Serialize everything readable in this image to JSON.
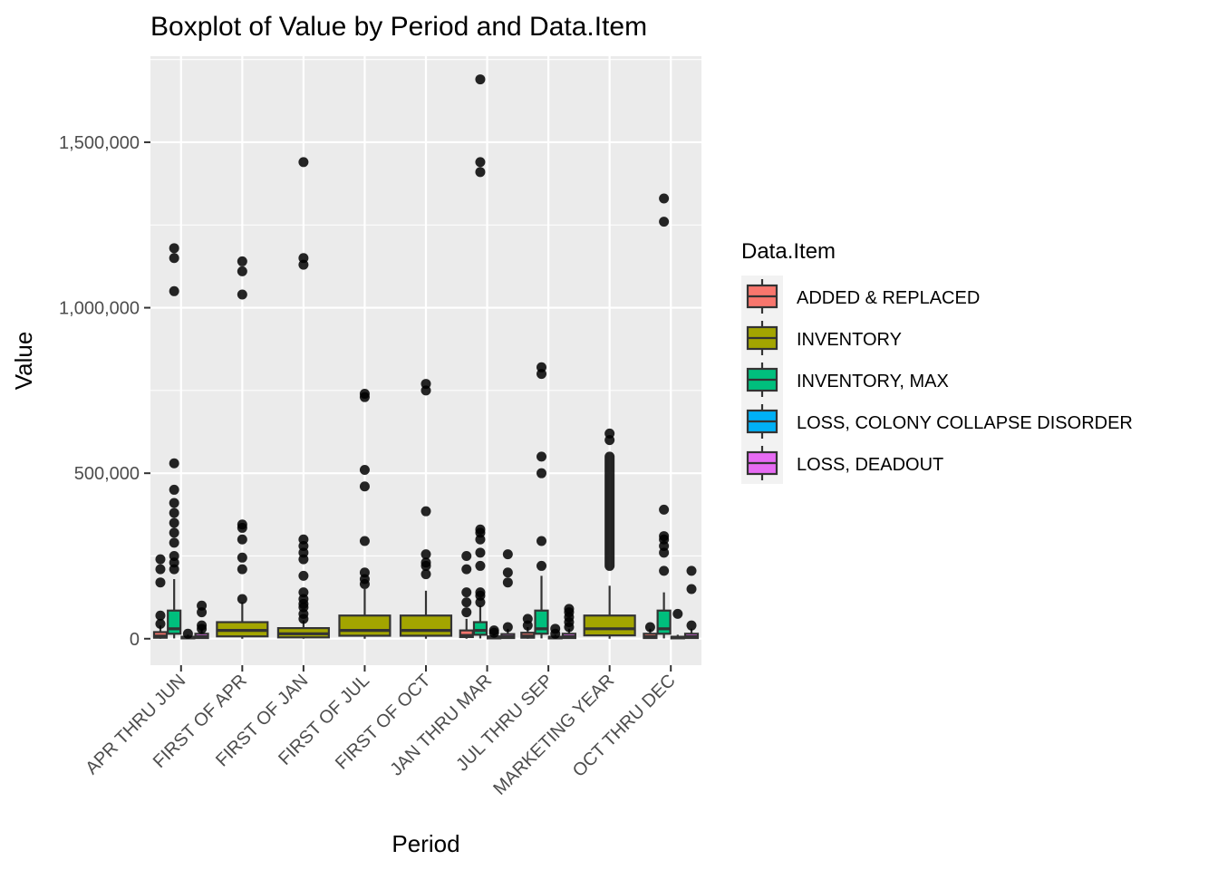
{
  "chart_data": {
    "type": "boxplot",
    "title": "Boxplot of Value by Period and Data.Item",
    "xlabel": "Period",
    "ylabel": "Value",
    "ylim": [
      -80000,
      1760000
    ],
    "yticks": [
      0,
      500000,
      1000000,
      1500000
    ],
    "ytick_labels": [
      "0",
      "500,000",
      "1,000,000",
      "1,500,000"
    ],
    "grid": true,
    "legend": {
      "title": "Data.Item",
      "position": "right",
      "items": [
        {
          "label": "ADDED & REPLACED",
          "color": "#F8766D"
        },
        {
          "label": "INVENTORY",
          "color": "#A3A500"
        },
        {
          "label": "INVENTORY, MAX",
          "color": "#00BF7D"
        },
        {
          "label": "LOSS, COLONY COLLAPSE DISORDER",
          "color": "#00B0F6"
        },
        {
          "label": "LOSS, DEADOUT",
          "color": "#E76BF3"
        }
      ]
    },
    "categories": [
      "APR THRU JUN",
      "FIRST OF APR",
      "FIRST OF JAN",
      "FIRST OF JUL",
      "FIRST OF OCT",
      "JAN THRU MAR",
      "JUL THRU SEP",
      "MARKETING YEAR",
      "OCT THRU DEC"
    ],
    "boxes": [
      {
        "category": "APR THRU JUN",
        "item": "ADDED & REPLACED",
        "slot": 0,
        "width": 3,
        "min": 0,
        "q1": 3000,
        "median": 8000,
        "q3": 20000,
        "max": 40000,
        "outliers": [
          45000,
          70000,
          170000,
          210000,
          240000
        ]
      },
      {
        "category": "APR THRU JUN",
        "item": "INVENTORY, MAX",
        "slot": 1,
        "width": 3,
        "min": 1000,
        "q1": 15000,
        "median": 30000,
        "q3": 85000,
        "max": 180000,
        "outliers": [
          210000,
          230000,
          250000,
          290000,
          320000,
          350000,
          380000,
          410000,
          450000,
          530000,
          1050000,
          1150000,
          1180000
        ]
      },
      {
        "category": "APR THRU JUN",
        "item": "LOSS, COLONY COLLAPSE DISORDER",
        "slot": 2,
        "width": 3,
        "min": 0,
        "q1": 1000,
        "median": 3000,
        "q3": 6000,
        "max": 12000,
        "outliers": [
          15000
        ]
      },
      {
        "category": "APR THRU JUN",
        "item": "LOSS, DEADOUT",
        "slot": 3,
        "width": 3,
        "min": 0,
        "q1": 2000,
        "median": 6000,
        "q3": 15000,
        "max": 30000,
        "outliers": [
          30000,
          40000,
          80000,
          100000
        ]
      },
      {
        "category": "FIRST OF APR",
        "item": "INVENTORY",
        "slot": 0,
        "width": 1,
        "min": 0,
        "q1": 7000,
        "median": 25000,
        "q3": 50000,
        "max": 110000,
        "outliers": [
          120000,
          210000,
          245000,
          300000,
          335000,
          345000,
          1040000,
          1110000,
          1140000
        ]
      },
      {
        "category": "FIRST OF JAN",
        "item": "INVENTORY",
        "slot": 0,
        "width": 1,
        "min": 0,
        "q1": 4000,
        "median": 15000,
        "q3": 32000,
        "max": 55000,
        "outliers": [
          60000,
          75000,
          95000,
          105000,
          120000,
          140000,
          190000,
          240000,
          260000,
          280000,
          300000,
          1130000,
          1150000,
          1440000
        ]
      },
      {
        "category": "FIRST OF JUL",
        "item": "INVENTORY",
        "slot": 0,
        "width": 1,
        "min": 0,
        "q1": 9000,
        "median": 25000,
        "q3": 70000,
        "max": 150000,
        "outliers": [
          165000,
          180000,
          200000,
          295000,
          460000,
          510000,
          730000,
          740000
        ]
      },
      {
        "category": "FIRST OF OCT",
        "item": "INVENTORY",
        "slot": 0,
        "width": 1,
        "min": 0,
        "q1": 9000,
        "median": 25000,
        "q3": 70000,
        "max": 145000,
        "outliers": [
          195000,
          220000,
          230000,
          255000,
          385000,
          750000,
          770000
        ]
      },
      {
        "category": "JAN THRU MAR",
        "item": "ADDED & REPLACED",
        "slot": 0,
        "width": 3,
        "min": 0,
        "q1": 5000,
        "median": 10000,
        "q3": 25000,
        "max": 60000,
        "outliers": [
          80000,
          110000,
          140000,
          210000,
          250000
        ]
      },
      {
        "category": "JAN THRU MAR",
        "item": "INVENTORY, MAX",
        "slot": 1,
        "width": 3,
        "min": 1000,
        "q1": 12000,
        "median": 25000,
        "q3": 50000,
        "max": 100000,
        "outliers": [
          110000,
          130000,
          140000,
          220000,
          260000,
          300000,
          320000,
          330000,
          1410000,
          1440000,
          1690000
        ]
      },
      {
        "category": "JAN THRU MAR",
        "item": "LOSS, COLONY COLLAPSE DISORDER",
        "slot": 2,
        "width": 3,
        "min": 0,
        "q1": 1000,
        "median": 3000,
        "q3": 7000,
        "max": 14000,
        "outliers": [
          18000,
          25000
        ]
      },
      {
        "category": "JAN THRU MAR",
        "item": "LOSS, DEADOUT",
        "slot": 3,
        "width": 3,
        "min": 0,
        "q1": 2000,
        "median": 6000,
        "q3": 14000,
        "max": 30000,
        "outliers": [
          35000,
          170000,
          200000,
          255000
        ]
      },
      {
        "category": "JUL THRU SEP",
        "item": "ADDED & REPLACED",
        "slot": 0,
        "width": 3,
        "min": 0,
        "q1": 3000,
        "median": 8000,
        "q3": 18000,
        "max": 35000,
        "outliers": [
          40000,
          60000
        ]
      },
      {
        "category": "JUL THRU SEP",
        "item": "INVENTORY, MAX",
        "slot": 1,
        "width": 3,
        "min": 1000,
        "q1": 15000,
        "median": 30000,
        "q3": 85000,
        "max": 190000,
        "outliers": [
          220000,
          295000,
          500000,
          550000,
          800000,
          820000
        ]
      },
      {
        "category": "JUL THRU SEP",
        "item": "LOSS, COLONY COLLAPSE DISORDER",
        "slot": 2,
        "width": 3,
        "min": 0,
        "q1": 1000,
        "median": 3000,
        "q3": 6000,
        "max": 12000,
        "outliers": [
          15000,
          30000
        ]
      },
      {
        "category": "JUL THRU SEP",
        "item": "LOSS, DEADOUT",
        "slot": 3,
        "width": 3,
        "min": 0,
        "q1": 2000,
        "median": 6000,
        "q3": 15000,
        "max": 30000,
        "outliers": [
          35000,
          50000,
          65000,
          80000,
          90000
        ]
      },
      {
        "category": "MARKETING YEAR",
        "item": "INVENTORY",
        "slot": 0,
        "width": 1,
        "min": 0,
        "q1": 10000,
        "median": 30000,
        "q3": 70000,
        "max": 160000,
        "outliers": [
          600000,
          620000
        ]
      },
      {
        "category": "OCT THRU DEC",
        "item": "ADDED & REPLACED",
        "slot": 0,
        "width": 3,
        "min": 0,
        "q1": 2000,
        "median": 6000,
        "q3": 15000,
        "max": 30000,
        "outliers": [
          35000
        ]
      },
      {
        "category": "OCT THRU DEC",
        "item": "INVENTORY, MAX",
        "slot": 1,
        "width": 3,
        "min": 1000,
        "q1": 15000,
        "median": 30000,
        "q3": 85000,
        "max": 140000,
        "outliers": [
          205000,
          260000,
          280000,
          300000,
          310000,
          390000,
          1260000,
          1330000
        ]
      },
      {
        "category": "OCT THRU DEC",
        "item": "LOSS, COLONY COLLAPSE DISORDER",
        "slot": 2,
        "width": 3,
        "min": 0,
        "q1": 1000,
        "median": 3000,
        "q3": 6000,
        "max": 12000,
        "outliers": [
          75000
        ]
      },
      {
        "category": "OCT THRU DEC",
        "item": "LOSS, DEADOUT",
        "slot": 3,
        "width": 3,
        "min": 0,
        "q1": 2000,
        "median": 6000,
        "q3": 15000,
        "max": 30000,
        "outliers": [
          40000,
          150000,
          205000
        ]
      }
    ],
    "dense_outlier_bands": [
      {
        "category": "MARKETING YEAR",
        "item": "INVENTORY",
        "from": 220000,
        "to": 550000
      }
    ]
  }
}
